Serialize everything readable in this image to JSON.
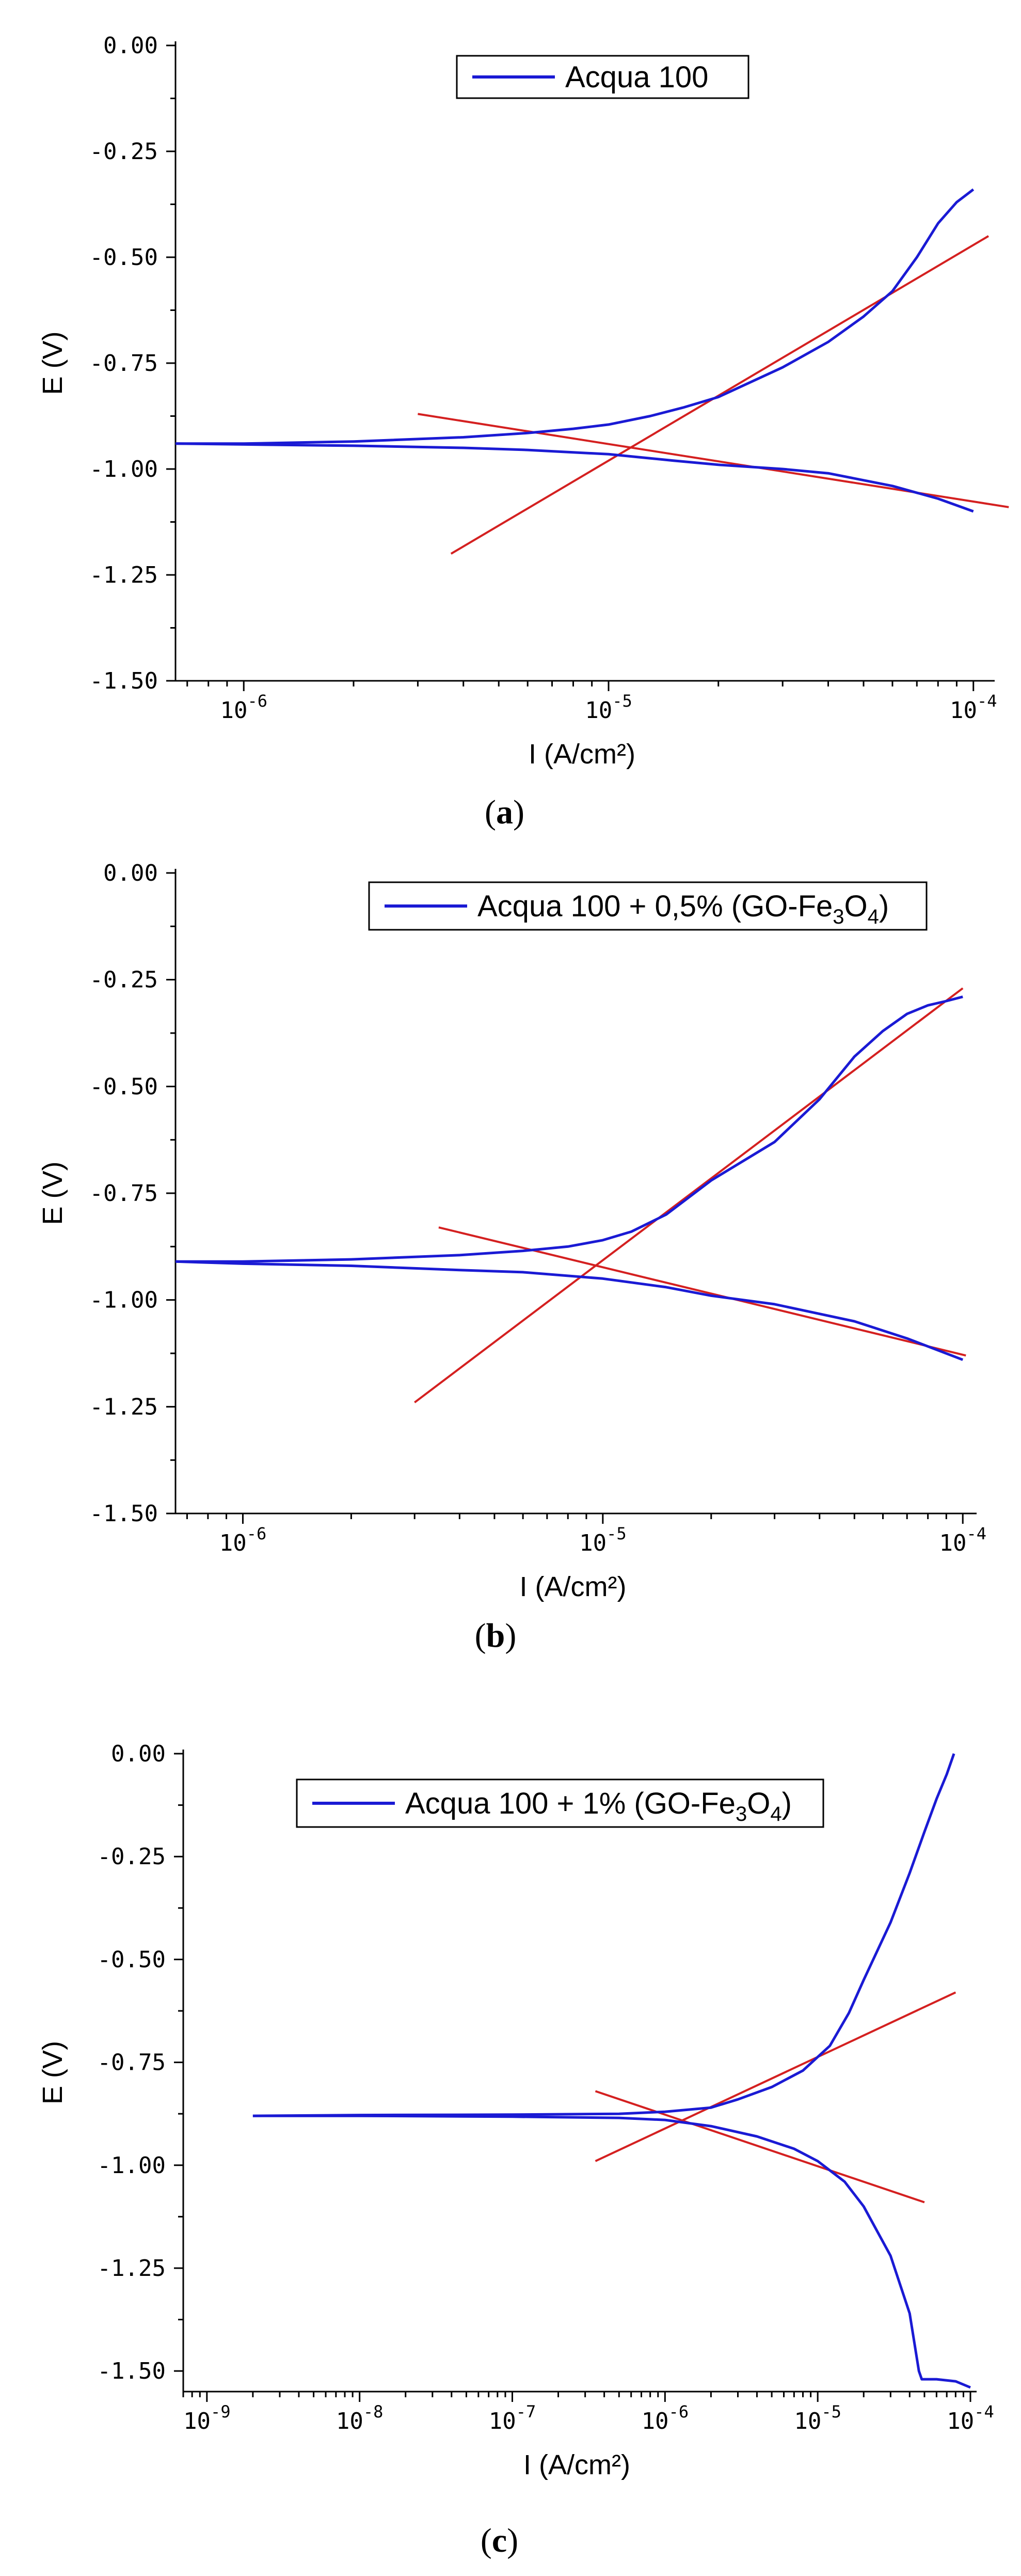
{
  "colors": {
    "curve": "#1a1ad4",
    "fit": "#d42020",
    "axis": "#000000"
  },
  "chart_data": [
    {
      "type": "line",
      "panel_label": "a",
      "xscale": "log",
      "xlim": [
        6.5e-07,
        0.00011
      ],
      "ylim": [
        -1.5,
        0.0
      ],
      "xlabel": "I (A/cm²)",
      "ylabel": "E (V)",
      "xtick_exponents": [
        -6,
        -5,
        -4
      ],
      "yticks": [
        0.0,
        -0.25,
        -0.5,
        -0.75,
        -1.0,
        -1.25,
        -1.5
      ],
      "ytick_labels": [
        "0.00",
        "-0.25",
        "-0.50",
        "-0.75",
        "-1.00",
        "-1.25",
        "-1.50"
      ],
      "legend": {
        "text": "Acqua 100",
        "position": "top-center"
      },
      "series": [
        {
          "name": "anodic branch",
          "x": [
            6.5e-07,
            1e-06,
            2e-06,
            4e-06,
            6e-06,
            8e-06,
            1e-05,
            1.3e-05,
            1.6e-05,
            2e-05,
            3e-05,
            4e-05,
            5e-05,
            6e-05,
            7e-05,
            8e-05,
            9e-05,
            0.0001
          ],
          "y": [
            -0.94,
            -0.94,
            -0.935,
            -0.925,
            -0.915,
            -0.905,
            -0.895,
            -0.875,
            -0.855,
            -0.83,
            -0.76,
            -0.7,
            -0.64,
            -0.58,
            -0.5,
            -0.42,
            -0.37,
            -0.34
          ]
        },
        {
          "name": "cathodic branch",
          "x": [
            6.5e-07,
            1e-06,
            2e-06,
            4e-06,
            6e-06,
            1e-05,
            1.5e-05,
            2e-05,
            3e-05,
            4e-05,
            6e-05,
            8e-05,
            0.0001
          ],
          "y": [
            -0.94,
            -0.942,
            -0.945,
            -0.95,
            -0.955,
            -0.965,
            -0.98,
            -0.99,
            -1.0,
            -1.01,
            -1.04,
            -1.07,
            -1.1
          ]
        }
      ],
      "fit_lines": [
        {
          "name": "anodic tafel",
          "x": [
            3.7e-06,
            0.00011
          ],
          "y": [
            -1.2,
            -0.45
          ]
        },
        {
          "name": "cathodic tafel",
          "x": [
            3e-06,
            0.000125
          ],
          "y": [
            -0.87,
            -1.09
          ]
        }
      ]
    },
    {
      "type": "line",
      "panel_label": "b",
      "xscale": "log",
      "xlim": [
        6.5e-07,
        0.000105
      ],
      "ylim": [
        -1.5,
        0.0
      ],
      "xlabel": "I (A/cm²)",
      "ylabel": "E (V)",
      "xtick_exponents": [
        -6,
        -5,
        -4
      ],
      "yticks": [
        0.0,
        -0.25,
        -0.5,
        -0.75,
        -1.0,
        -1.25,
        -1.5
      ],
      "ytick_labels": [
        "0.00",
        "-0.25",
        "-0.50",
        "-0.75",
        "-1.00",
        "-1.25",
        "-1.50"
      ],
      "legend": {
        "text_prefix": "Acqua 100 + 0,5% (GO-Fe",
        "sub1": "3",
        "text_mid": "O",
        "sub2": "4",
        "text_suffix": ")",
        "position": "top-right"
      },
      "series": [
        {
          "name": "anodic branch",
          "x": [
            6.5e-07,
            1e-06,
            2e-06,
            4e-06,
            6e-06,
            8e-06,
            1e-05,
            1.2e-05,
            1.5e-05,
            2e-05,
            3e-05,
            4e-05,
            5e-05,
            6e-05,
            7e-05,
            8e-05,
            9e-05,
            0.0001
          ],
          "y": [
            -0.91,
            -0.91,
            -0.905,
            -0.895,
            -0.885,
            -0.875,
            -0.86,
            -0.84,
            -0.8,
            -0.72,
            -0.63,
            -0.53,
            -0.43,
            -0.37,
            -0.33,
            -0.31,
            -0.3,
            -0.29
          ]
        },
        {
          "name": "cathodic branch",
          "x": [
            6.5e-07,
            1e-06,
            2e-06,
            4e-06,
            6e-06,
            1e-05,
            1.5e-05,
            2e-05,
            3e-05,
            5e-05,
            7e-05,
            0.0001
          ],
          "y": [
            -0.91,
            -0.915,
            -0.92,
            -0.93,
            -0.935,
            -0.95,
            -0.97,
            -0.99,
            -1.01,
            -1.05,
            -1.09,
            -1.14
          ]
        }
      ],
      "fit_lines": [
        {
          "name": "anodic tafel",
          "x": [
            3e-06,
            0.0001
          ],
          "y": [
            -1.24,
            -0.27
          ]
        },
        {
          "name": "cathodic tafel",
          "x": [
            3.5e-06,
            0.000102
          ],
          "y": [
            -0.83,
            -1.13
          ]
        }
      ]
    },
    {
      "type": "line",
      "panel_label": "c",
      "xscale": "log",
      "xlim": [
        7e-10,
        0.0001
      ],
      "ylim": [
        -1.55,
        0.0
      ],
      "xlabel": "I (A/cm²)",
      "ylabel": "E (V)",
      "xtick_exponents": [
        -9,
        -8,
        -7,
        -6,
        -5,
        -4
      ],
      "yticks": [
        0.0,
        -0.25,
        -0.5,
        -0.75,
        -1.0,
        -1.25,
        -1.5
      ],
      "ytick_labels": [
        "0.00",
        "-0.25",
        "-0.50",
        "-0.75",
        "-1.00",
        "-1.25",
        "-1.50"
      ],
      "legend": {
        "text_prefix": "Acqua 100 + 1% (GO-Fe",
        "sub1": "3",
        "text_mid": "O",
        "sub2": "4",
        "text_suffix": ")",
        "position": "top-center"
      },
      "series": [
        {
          "name": "anodic branch",
          "x": [
            2e-09,
            1e-08,
            1e-07,
            5e-07,
            1e-06,
            2e-06,
            3e-06,
            5e-06,
            8e-06,
            1.2e-05,
            1.6e-05,
            2e-05,
            3e-05,
            4e-05,
            5e-05,
            6e-05,
            7e-05,
            7.8e-05
          ],
          "y": [
            -0.88,
            -0.878,
            -0.877,
            -0.875,
            -0.87,
            -0.86,
            -0.84,
            -0.81,
            -0.77,
            -0.71,
            -0.63,
            -0.55,
            -0.41,
            -0.29,
            -0.19,
            -0.11,
            -0.05,
            0.0
          ]
        },
        {
          "name": "cathodic branch",
          "x": [
            2e-09,
            1e-08,
            1e-07,
            5e-07,
            1e-06,
            2e-06,
            4e-06,
            7e-06,
            1e-05,
            1.5e-05,
            2e-05,
            3e-05,
            4e-05,
            4.6e-05,
            4.8e-05,
            6e-05,
            8e-05,
            0.0001
          ],
          "y": [
            -0.88,
            -0.88,
            -0.882,
            -0.885,
            -0.89,
            -0.905,
            -0.93,
            -0.96,
            -0.99,
            -1.04,
            -1.1,
            -1.22,
            -1.36,
            -1.5,
            -1.52,
            -1.52,
            -1.525,
            -1.54
          ]
        }
      ],
      "fit_lines": [
        {
          "name": "anodic tafel",
          "x": [
            3.5e-07,
            8e-05
          ],
          "y": [
            -0.99,
            -0.58
          ]
        },
        {
          "name": "cathodic tafel",
          "x": [
            3.5e-07,
            5e-05
          ],
          "y": [
            -0.82,
            -1.09
          ]
        }
      ]
    }
  ]
}
